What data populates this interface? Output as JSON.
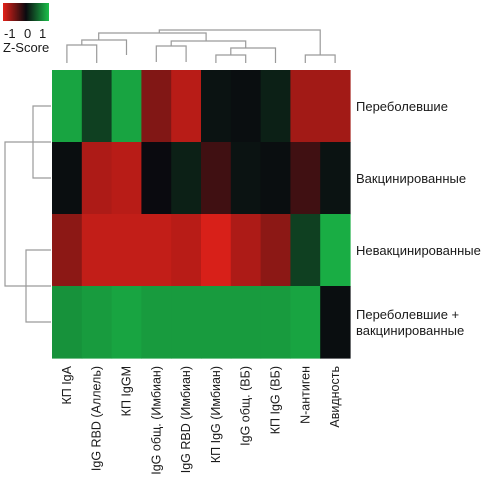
{
  "chart_data": {
    "type": "heatmap",
    "legend": {
      "title": "Z-Score",
      "ticks": [
        "-1",
        "0",
        "1"
      ],
      "colors": {
        "low": "#e32119",
        "mid": "#0a0a0f",
        "high": "#1bbf4a"
      }
    },
    "rows": [
      [
        "Переболевшие"
      ],
      [
        "Вакцинированные"
      ],
      [
        "Невакцинированные"
      ],
      [
        "Переболевшие +",
        "вакцинированные"
      ]
    ],
    "columns": [
      "КП IgA",
      "IgG RBD (Аллель)",
      "КП IgGM",
      "IgG общ. (Имбиан)",
      "IgG RBD (Имбиан)",
      "КП IgG (Имбиан)",
      "IgG общ. (ВБ)",
      "КП IgG (ВБ)",
      "N-антиген",
      "Авидность"
    ],
    "values": [
      [
        0.85,
        0.3,
        0.85,
        -0.55,
        -0.8,
        0.05,
        0.02,
        0.12,
        -0.7,
        -0.7
      ],
      [
        0.02,
        -0.75,
        -0.8,
        0.0,
        0.12,
        -0.25,
        0.05,
        0.02,
        -0.25,
        0.05
      ],
      [
        -0.6,
        -0.85,
        -0.85,
        -0.85,
        -0.8,
        -0.95,
        -0.75,
        -0.6,
        0.3,
        0.9
      ],
      [
        0.75,
        0.8,
        0.85,
        0.8,
        0.8,
        0.8,
        0.8,
        0.8,
        0.85,
        0.02
      ]
    ],
    "col_order_note": "",
    "dendrograms": {
      "rows": true,
      "columns": true
    }
  }
}
